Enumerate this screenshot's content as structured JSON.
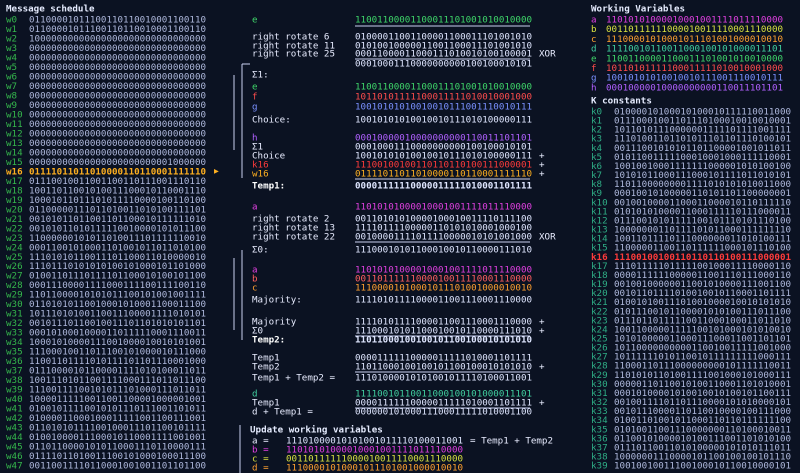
{
  "message_schedule": {
    "title": "Message schedule",
    "rows": [
      {
        "label": "w0",
        "bits": "01100001011100110110010001100110"
      },
      {
        "label": "w1",
        "bits": "01100001011100110110010001100110"
      },
      {
        "label": "w2",
        "bits": "10000000000000000000000000000000"
      },
      {
        "label": "w3",
        "bits": "00000000000000000000000000000000"
      },
      {
        "label": "w4",
        "bits": "00000000000000000000000000000000"
      },
      {
        "label": "w5",
        "bits": "00000000000000000000000000000000"
      },
      {
        "label": "w6",
        "bits": "00000000000000000000000000000000"
      },
      {
        "label": "w7",
        "bits": "00000000000000000000000000000000"
      },
      {
        "label": "w8",
        "bits": "00000000000000000000000000000000"
      },
      {
        "label": "w9",
        "bits": "00000000000000000000000000000000"
      },
      {
        "label": "w10",
        "bits": "00000000000000000000000000000000"
      },
      {
        "label": "w11",
        "bits": "00000000000000000000000000000000"
      },
      {
        "label": "w12",
        "bits": "00000000000000000000000000000000"
      },
      {
        "label": "w13",
        "bits": "00000000000000000000000000000000"
      },
      {
        "label": "w14",
        "bits": "00000000000000000000000000000000"
      },
      {
        "label": "w15",
        "bits": "00000000000000000000000001000000"
      },
      {
        "label": "w16",
        "bits": "01111011011010000110110001111110",
        "color": "#ffb020"
      },
      {
        "label": "w17",
        "bits": "01110010011001100110111001110110"
      },
      {
        "label": "w18",
        "bits": "10011011001010011100010110001110"
      },
      {
        "label": "w19",
        "bits": "10001011011101011110000100110100"
      },
      {
        "label": "w20",
        "bits": "01100000111011010011010100111101"
      },
      {
        "label": "w21",
        "bits": "00101011011001101100010111111010"
      },
      {
        "label": "w22",
        "bits": "00101011010111110010000101011100"
      },
      {
        "label": "w23",
        "bits": "11000000101011010011101111110010"
      },
      {
        "label": "w24",
        "bits": "00011001010001101001011011010100"
      },
      {
        "label": "w25",
        "bits": "11101010110011101100011010000010"
      },
      {
        "label": "w26",
        "bits": "11101110101010100101000101101000"
      },
      {
        "label": "w27",
        "bits": "01001101110111101100010100101100"
      },
      {
        "label": "w28",
        "bits": "00011100001111000111100111100110"
      },
      {
        "label": "w29",
        "bits": "11011000010101011100101001001111"
      },
      {
        "label": "w30",
        "bits": "01101010110010001010001100011100"
      },
      {
        "label": "w31",
        "bits": "10111010100110011100001111010101"
      },
      {
        "label": "w32",
        "bits": "00101110110010011101101010101101"
      },
      {
        "label": "w33",
        "bits": "00010100010000110111110001110011"
      },
      {
        "label": "w34",
        "bits": "10001010000111001000010010101001"
      },
      {
        "label": "w35",
        "bits": "11100010011011100101000010111000"
      },
      {
        "label": "w36",
        "bits": "11001101111010111101101110001000"
      },
      {
        "label": "w37",
        "bits": "01110000101100001111010100011011"
      },
      {
        "label": "w38",
        "bits": "10011101011001111000111011011100"
      },
      {
        "label": "w39",
        "bits": "11100111100101011101000111011011"
      },
      {
        "label": "w40",
        "bits": "10000111110011001100001000001001"
      },
      {
        "label": "w41",
        "bits": "01001011110010101110111001101011"
      },
      {
        "label": "w42",
        "bits": "01000011000100011111001100111001"
      },
      {
        "label": "w43",
        "bits": "01101010111100100011101100101111"
      },
      {
        "label": "w44",
        "bits": "01001000011100010110001111001001"
      },
      {
        "label": "w45",
        "bits": "01101100001010110001110110000111"
      },
      {
        "label": "w46",
        "bits": "01111011010011100101000100011100"
      },
      {
        "label": "w47",
        "bits": "00110011110110001001001101101100"
      }
    ]
  },
  "working_variables": {
    "title": "Working Variables",
    "rows": [
      {
        "label": "a",
        "bits": "11010101000010001001111011110000",
        "color": "#e040e0"
      },
      {
        "label": "b",
        "bits": "00110111111000010011110001110000",
        "color": "#d8e040"
      },
      {
        "label": "c",
        "bits": "11100001010001011101001000010010",
        "color": "#ffa030"
      },
      {
        "label": "d",
        "bits": "11110010110011000100101000011101",
        "color": "#40d0a0"
      },
      {
        "label": "e",
        "bits": "11001100001100011101001010010000",
        "color": "#3fd66a"
      },
      {
        "label": "f",
        "bits": "10110101111100011111010010001000",
        "color": "#ff4d4d"
      },
      {
        "label": "g",
        "bits": "10010101010010010111001110010111",
        "color": "#7a90ff"
      },
      {
        "label": "h",
        "bits": "00010000010000000000110011101101",
        "color": "#b060ff"
      }
    ]
  },
  "k_constants": {
    "title": "K constants",
    "rows": [
      {
        "label": "k0",
        "bits": "01000010100010100010111110011000"
      },
      {
        "label": "k1",
        "bits": "01110001001101110100010010010001"
      },
      {
        "label": "k2",
        "bits": "10110101110000001111101111001111"
      },
      {
        "label": "k3",
        "bits": "11101001101101011101101110100101"
      },
      {
        "label": "k4",
        "bits": "00111001010101101100001001011011"
      },
      {
        "label": "k5",
        "bits": "01011001111100010001000111110001"
      },
      {
        "label": "k6",
        "bits": "10010010001111111000001010100100"
      },
      {
        "label": "k7",
        "bits": "10101011000111000101111011010101"
      },
      {
        "label": "k8",
        "bits": "11011000000001111010101010011000"
      },
      {
        "label": "k9",
        "bits": "00010010100000110101101100000001"
      },
      {
        "label": "k10",
        "bits": "00100100001100011000010110111110"
      },
      {
        "label": "k11",
        "bits": "01010101000011000111110111000011"
      },
      {
        "label": "k12",
        "bits": "01110010101111100101110101110100"
      },
      {
        "label": "k13",
        "bits": "10000000110111101011000111111110"
      },
      {
        "label": "k14",
        "bits": "10011011110111000000011010100111"
      },
      {
        "label": "k15",
        "bits": "11000001100110111111000101110100"
      },
      {
        "label": "k16",
        "bits": "11100100100110110110100111000001",
        "color": "#ff3b3b"
      },
      {
        "label": "k17",
        "bits": "11101111101111100100011110000110"
      },
      {
        "label": "k18",
        "bits": "00001111110000011001110111000110"
      },
      {
        "label": "k19",
        "bits": "00100100000011001010000111001100"
      },
      {
        "label": "k20",
        "bits": "00101101111010010010110001101111"
      },
      {
        "label": "k21",
        "bits": "01001010011101001000010010101010"
      },
      {
        "label": "k22",
        "bits": "01011100101100001010100111011100"
      },
      {
        "label": "k23",
        "bits": "01110110111110011000100011011010"
      },
      {
        "label": "k24",
        "bits": "10011000001111100101000101010010"
      },
      {
        "label": "k25",
        "bits": "10101000001100011100011001101101"
      },
      {
        "label": "k26",
        "bits": "10110000000000110010011111001000"
      },
      {
        "label": "k27",
        "bits": "10111111010110010111111111000111"
      },
      {
        "label": "k28",
        "bits": "11000110111000000000101111110011"
      },
      {
        "label": "k29",
        "bits": "11010101101001111001000101000111"
      },
      {
        "label": "k30",
        "bits": "00000110110010100110001101010001"
      },
      {
        "label": "k31",
        "bits": "00010100001010010010100101100111"
      },
      {
        "label": "k32",
        "bits": "00100111101101110000101010000101"
      },
      {
        "label": "k33",
        "bits": "00101110000110110010000100111000"
      },
      {
        "label": "k34",
        "bits": "01001101001011000110110111111100"
      },
      {
        "label": "k35",
        "bits": "01010011001110000000110100010011"
      },
      {
        "label": "k36",
        "bits": "01100101000010100111001101010100"
      },
      {
        "label": "k37",
        "bits": "01110110011010100000101010111011"
      },
      {
        "label": "k38",
        "bits": "10000001110000101100100100101110"
      },
      {
        "label": "k39",
        "bits": "10010010011100100010110010000101"
      }
    ]
  },
  "computation": {
    "update_title": "Update working variables",
    "lines": [
      {
        "label": "e",
        "bits": "11001100001100011101001010010000",
        "color": "#3fd66a"
      },
      {
        "label": "right rotate 6",
        "bits": "01000011001100001100011101001010"
      },
      {
        "label": "right rotate 11",
        "bits": "01010010000011001100011101001010"
      },
      {
        "label": "right rotate 25",
        "bits": "00011000011000111010010100100001",
        "suffix": "XOR"
      },
      {
        "bits": "00010001110000000000100100010101"
      },
      {
        "label": "Σ1:"
      },
      {
        "label": "e",
        "bits": "11001100001100011101001010010000",
        "color": "#3fd66a"
      },
      {
        "label": "f",
        "bits": "10110101111100011111010010001000",
        "color": "#ff4d4d"
      },
      {
        "label": "g",
        "bits": "10010101010010010111001110010111",
        "color": "#7a90ff"
      },
      {
        "label": "Choice:",
        "bits": "10010101010010010111010100000111"
      },
      {
        "label": "h",
        "bits": "00010000010000000000110011101101",
        "color": "#b060ff"
      },
      {
        "label": "Σ1",
        "bits": "00010001110000000000100100010101"
      },
      {
        "label": "Choice",
        "bits": "10010101010010010111010100000111",
        "suffix": "+"
      },
      {
        "label": "k16",
        "bits": "11100100100110110110100111000001",
        "suffix": "+",
        "color": "#ff3b3b"
      },
      {
        "label": "w16",
        "bits": "01111011011010000110110001111110",
        "suffix": "+",
        "color": "#ffb020"
      },
      {
        "label": "Temp1:",
        "bits": "00001111110000011111010001101111",
        "bold": true
      },
      {
        "label": "a",
        "bits": "11010101000010001001111011110000",
        "color": "#e040e0"
      },
      {
        "label": "right rotate 2",
        "bits": "00110101010000100010011110111100"
      },
      {
        "label": "right rotate 13",
        "bits": "11110111100000110101010001000100"
      },
      {
        "label": "right rotate 22",
        "bits": "00100001111011110000010101001000",
        "suffix": "XOR"
      },
      {
        "label": "Σ0:",
        "bits": "11100010101100010010110000111010"
      },
      {
        "label": "a",
        "bits": "11010101000010001001111011110000",
        "color": "#e040e0"
      },
      {
        "label": "b",
        "bits": "00110111111000010011110001110000",
        "color": "#ff6060"
      },
      {
        "label": "c",
        "bits": "11100001010001011101001000010010",
        "color": "#ffa030"
      },
      {
        "label": "Majority:",
        "bits": "11110101111000011001110001110000"
      },
      {
        "label": "Majority",
        "bits": "11110101111000011001110001110000",
        "suffix": "+"
      },
      {
        "label": "Σ0",
        "bits": "11100010101100010010110000111010",
        "suffix": "+"
      },
      {
        "label": "Temp2:",
        "bits": "11011000100100101100100010101010",
        "bold": true
      },
      {
        "label": "Temp1",
        "bits": "00001111110000011111010001101111"
      },
      {
        "label": "Temp2",
        "bits": "11011000100100101100100010101010",
        "suffix": "+"
      },
      {
        "label": "Temp1 + Temp2 =",
        "bits": "11101000010101001011110100011001"
      },
      {
        "label": "d",
        "bits": "11110010110011000100101000011101",
        "color": "#40d0a0"
      },
      {
        "label": "Temp1",
        "bits": "00001111110000011111010001101111",
        "suffix": "+"
      },
      {
        "label": "d + Temp1 =",
        "bits": "00000010100011100011111010001100"
      },
      {
        "label": "a =",
        "bits": "11101000010101001011110100011001",
        "suffix": "= Temp1 + Temp2"
      },
      {
        "label": "b =",
        "bits": "11010101000010001001111011110000",
        "color": "#e040e0"
      },
      {
        "label": "c =",
        "bits": "00110111111000010011110001110000",
        "color": "#d8e040"
      },
      {
        "label": "d =",
        "bits": "11100001010001011101001000010010",
        "color": "#ffa030"
      }
    ]
  }
}
